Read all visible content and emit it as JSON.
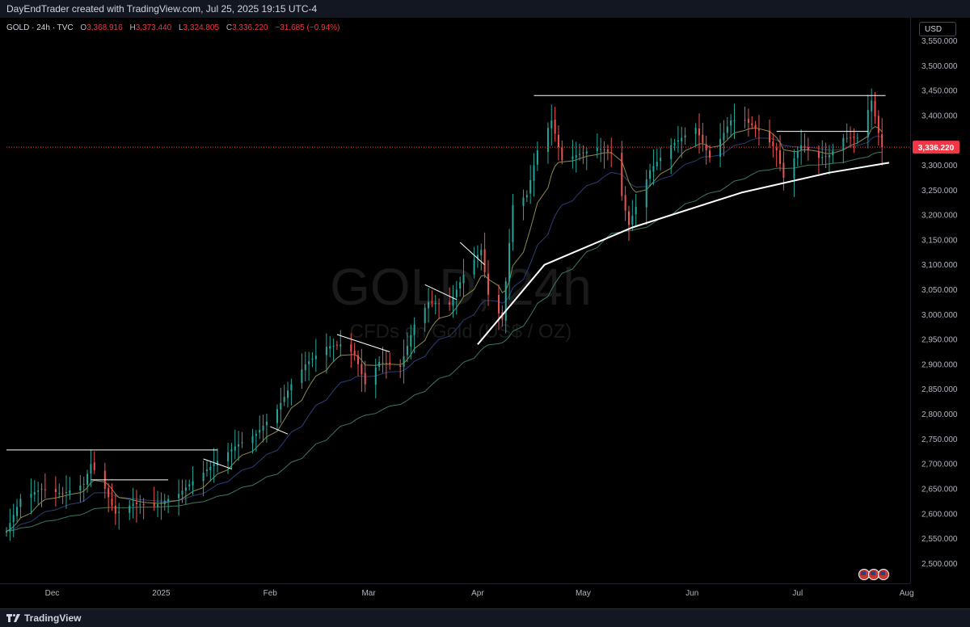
{
  "header": {
    "credit": "DayEndTrader created with TradingView.com, Jul 25, 2025 19:15 UTC-4"
  },
  "legend": {
    "symbol": "GOLD · 24h · TVC",
    "o_label": "O",
    "o_value": "3,368.916",
    "h_label": "H",
    "h_value": "3,373.440",
    "l_label": "L",
    "l_value": "3,324.805",
    "c_label": "C",
    "c_value": "3,336.220",
    "change": "−31.685 (−0.94%)"
  },
  "currency_button": "USD",
  "watermark": {
    "line1": "GOLD, 24h",
    "line2": "CFDs on Gold (US$ / OZ)"
  },
  "footer": {
    "brand": "TradingView"
  },
  "colors": {
    "up": "#26a69a",
    "down": "#ef5350",
    "price_tag": "#f23645",
    "ema_fast": "#8a8a4a",
    "ema_mid": "#2a3f7a",
    "ema_slow": "#3a7a5a",
    "trendline": "#ffffff"
  },
  "chart_data": {
    "type": "candlestick",
    "ylim": [
      2460,
      3580
    ],
    "y_ticks": [
      2500,
      2550,
      2600,
      2650,
      2700,
      2750,
      2800,
      2850,
      2900,
      2950,
      3000,
      3050,
      3100,
      3150,
      3200,
      3250,
      3300,
      3350,
      3400,
      3450,
      3500,
      3550
    ],
    "y_tick_labels": [
      "2,500.000",
      "2,550.000",
      "2,600.000",
      "2,650.000",
      "2,700.000",
      "2,750.000",
      "2,800.000",
      "2,850.000",
      "2,900.000",
      "2,950.000",
      "3,000.000",
      "3,050.000",
      "3,100.000",
      "3,150.000",
      "3,200.000",
      "3,250.000",
      "3,300.000",
      "3,350.000",
      "3,400.000",
      "3,450.000",
      "3,500.000",
      "3,550.000"
    ],
    "x_range": [
      "2024-11-18",
      "2025-08-02"
    ],
    "x_ticks": [
      {
        "label": "Dec",
        "date": "2024-12-01"
      },
      {
        "label": "2025",
        "date": "2025-01-01"
      },
      {
        "label": "Feb",
        "date": "2025-02-01"
      },
      {
        "label": "Mar",
        "date": "2025-03-01"
      },
      {
        "label": "Apr",
        "date": "2025-04-01"
      },
      {
        "label": "May",
        "date": "2025-05-01"
      },
      {
        "label": "Jun",
        "date": "2025-06-01"
      },
      {
        "label": "Jul",
        "date": "2025-07-01"
      },
      {
        "label": "Aug",
        "date": "2025-08-01"
      }
    ],
    "last_price": 3336.22,
    "last_price_label": "3,336.220",
    "closes": [
      [
        "2024-11-18",
        2565
      ],
      [
        "2024-11-22",
        2630
      ],
      [
        "2024-11-28",
        2650
      ],
      [
        "2024-12-04",
        2640
      ],
      [
        "2024-12-10",
        2660
      ],
      [
        "2024-12-12",
        2700
      ],
      [
        "2024-12-16",
        2650
      ],
      [
        "2024-12-19",
        2600
      ],
      [
        "2024-12-24",
        2620
      ],
      [
        "2024-12-30",
        2615
      ],
      [
        "2025-01-06",
        2640
      ],
      [
        "2025-01-10",
        2665
      ],
      [
        "2025-01-16",
        2700
      ],
      [
        "2025-01-22",
        2735
      ],
      [
        "2025-01-28",
        2760
      ],
      [
        "2025-02-03",
        2810
      ],
      [
        "2025-02-07",
        2860
      ],
      [
        "2025-02-11",
        2900
      ],
      [
        "2025-02-17",
        2935
      ],
      [
        "2025-02-21",
        2940
      ],
      [
        "2025-02-25",
        2920
      ],
      [
        "2025-02-28",
        2860
      ],
      [
        "2025-03-04",
        2905
      ],
      [
        "2025-03-10",
        2895
      ],
      [
        "2025-03-14",
        2980
      ],
      [
        "2025-03-18",
        3025
      ],
      [
        "2025-03-24",
        3020
      ],
      [
        "2025-03-28",
        3080
      ],
      [
        "2025-04-02",
        3130
      ],
      [
        "2025-04-04",
        3040
      ],
      [
        "2025-04-08",
        2990
      ],
      [
        "2025-04-11",
        3220
      ],
      [
        "2025-04-15",
        3240
      ],
      [
        "2025-04-18",
        3330
      ],
      [
        "2025-04-22",
        3390
      ],
      [
        "2025-04-25",
        3310
      ],
      [
        "2025-04-29",
        3320
      ],
      [
        "2025-05-05",
        3335
      ],
      [
        "2025-05-09",
        3325
      ],
      [
        "2025-05-14",
        3180
      ],
      [
        "2025-05-20",
        3290
      ],
      [
        "2025-05-26",
        3340
      ],
      [
        "2025-06-02",
        3375
      ],
      [
        "2025-06-06",
        3315
      ],
      [
        "2025-06-12",
        3390
      ],
      [
        "2025-06-16",
        3390
      ],
      [
        "2025-06-20",
        3370
      ],
      [
        "2025-06-25",
        3330
      ],
      [
        "2025-06-27",
        3275
      ],
      [
        "2025-07-02",
        3340
      ],
      [
        "2025-07-07",
        3315
      ],
      [
        "2025-07-10",
        3320
      ],
      [
        "2025-07-14",
        3355
      ],
      [
        "2025-07-18",
        3355
      ],
      [
        "2025-07-22",
        3430
      ],
      [
        "2025-07-24",
        3365
      ],
      [
        "2025-07-25",
        3336
      ]
    ],
    "resistance_lines": [
      {
        "from": [
          "2024-11-18",
          2728
        ],
        "to": [
          "2025-01-17",
          2728
        ]
      },
      {
        "from": [
          "2024-12-12",
          2668
        ],
        "to": [
          "2025-01-03",
          2668
        ]
      },
      {
        "from": [
          "2025-04-17",
          3440
        ],
        "to": [
          "2025-07-26",
          3440
        ]
      },
      {
        "from": [
          "2025-06-25",
          3368
        ],
        "to": [
          "2025-07-21",
          3368
        ]
      }
    ],
    "descending_lines": [
      {
        "from": [
          "2025-01-13",
          2710
        ],
        "to": [
          "2025-01-21",
          2690
        ]
      },
      {
        "from": [
          "2025-02-01",
          2775
        ],
        "to": [
          "2025-02-06",
          2760
        ]
      },
      {
        "from": [
          "2025-02-20",
          2960
        ],
        "to": [
          "2025-03-07",
          2925
        ]
      },
      {
        "from": [
          "2025-03-17",
          3060
        ],
        "to": [
          "2025-03-26",
          3030
        ]
      },
      {
        "from": [
          "2025-03-27",
          3145
        ],
        "to": [
          "2025-04-03",
          3100
        ]
      }
    ],
    "support_curve": [
      [
        "2025-04-01",
        2940
      ],
      [
        "2025-04-20",
        3100
      ],
      [
        "2025-05-15",
        3175
      ],
      [
        "2025-06-15",
        3245
      ],
      [
        "2025-07-10",
        3285
      ],
      [
        "2025-07-27",
        3305
      ]
    ]
  }
}
